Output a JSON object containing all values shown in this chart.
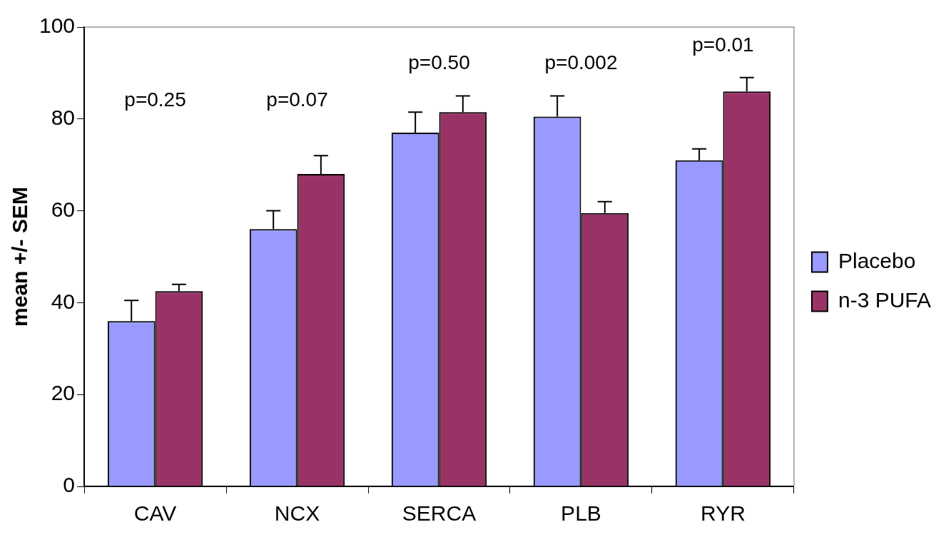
{
  "chart_data": {
    "type": "bar",
    "ylabel": "mean +/- SEM",
    "categories": [
      "CAV",
      "NCX",
      "SERCA",
      "PLB",
      "RYR"
    ],
    "series": [
      {
        "name": "Placebo",
        "color": "#9999ff",
        "values": [
          36,
          56,
          77,
          80.5,
          71
        ],
        "errors": [
          [
            36,
            40.5
          ],
          [
            56,
            60
          ],
          [
            77,
            81.5
          ],
          [
            80.5,
            85
          ],
          [
            71,
            73.5
          ]
        ]
      },
      {
        "name": "n-3 PUFA",
        "color": "#993366",
        "values": [
          42.5,
          68,
          81.5,
          59.5,
          86
        ],
        "errors": [
          [
            42.5,
            44
          ],
          [
            68,
            72
          ],
          [
            81.5,
            85
          ],
          [
            59.5,
            62
          ],
          [
            86,
            89
          ]
        ]
      }
    ],
    "ylim": [
      0,
      100
    ],
    "yticks": [
      0,
      20,
      40,
      60,
      80,
      100
    ],
    "grid": false,
    "legend": "right",
    "annotations": [
      "p=0.25",
      "p=0.07",
      "p=0.50",
      "p=0.002",
      "p=0.01"
    ]
  }
}
